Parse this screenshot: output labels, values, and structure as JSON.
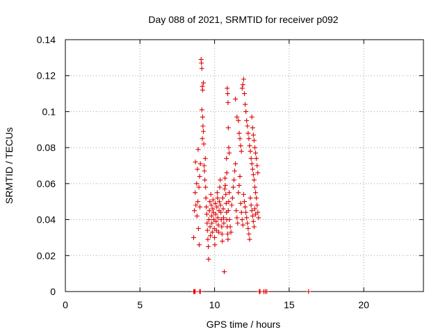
{
  "chart_data": {
    "type": "scatter",
    "title": "Day 088 of 2021, SRMTID for receiver p092",
    "xlabel": "GPS time / hours",
    "ylabel": "SRMTID / TECUs",
    "xlim": [
      0,
      24
    ],
    "ylim": [
      0,
      0.14
    ],
    "grid": true,
    "marker": "+",
    "color": "#dd0000",
    "x_ticks": [
      0,
      5,
      10,
      15,
      20
    ],
    "x_tick_labels": [
      "0",
      "5",
      "10",
      "15",
      "20"
    ],
    "y_ticks": [
      0,
      0.02,
      0.04,
      0.06,
      0.08,
      0.1,
      0.12,
      0.14
    ],
    "y_tick_labels": [
      "0",
      "0.02",
      "0.04",
      "0.06",
      "0.08",
      "0.1",
      "0.12",
      "0.14"
    ],
    "series": [
      {
        "name": "SRMTID",
        "points": [
          [
            8.6,
            0.0
          ],
          [
            8.65,
            0.0
          ],
          [
            8.7,
            0.0
          ],
          [
            9.0,
            0.0
          ],
          [
            9.05,
            0.0
          ],
          [
            13.0,
            0.0
          ],
          [
            13.05,
            0.0
          ],
          [
            13.3,
            0.0
          ],
          [
            13.4,
            0.0
          ],
          [
            13.5,
            0.0
          ],
          [
            16.3,
            0.0
          ],
          [
            8.6,
            0.03
          ],
          [
            8.65,
            0.045
          ],
          [
            8.7,
            0.055
          ],
          [
            8.72,
            0.072
          ],
          [
            8.75,
            0.048
          ],
          [
            8.8,
            0.06
          ],
          [
            8.82,
            0.042
          ],
          [
            8.85,
            0.068
          ],
          [
            8.88,
            0.05
          ],
          [
            8.9,
            0.079
          ],
          [
            8.92,
            0.035
          ],
          [
            8.95,
            0.058
          ],
          [
            8.97,
            0.026
          ],
          [
            9.0,
            0.064
          ],
          [
            9.02,
            0.047
          ],
          [
            9.05,
            0.071
          ],
          [
            9.1,
            0.129
          ],
          [
            9.12,
            0.127
          ],
          [
            9.15,
            0.124
          ],
          [
            9.18,
            0.114
          ],
          [
            9.2,
            0.112
          ],
          [
            9.25,
            0.116
          ],
          [
            9.15,
            0.101
          ],
          [
            9.2,
            0.097
          ],
          [
            9.22,
            0.092
          ],
          [
            9.25,
            0.089
          ],
          [
            9.18,
            0.085
          ],
          [
            9.28,
            0.082
          ],
          [
            9.3,
            0.07
          ],
          [
            9.32,
            0.067
          ],
          [
            9.35,
            0.062
          ],
          [
            9.38,
            0.074
          ],
          [
            9.4,
            0.058
          ],
          [
            9.42,
            0.052
          ],
          [
            9.45,
            0.047
          ],
          [
            9.48,
            0.043
          ],
          [
            9.5,
            0.038
          ],
          [
            9.52,
            0.034
          ],
          [
            9.55,
            0.029
          ],
          [
            9.58,
            0.025
          ],
          [
            9.6,
            0.018
          ],
          [
            9.62,
            0.04
          ],
          [
            9.65,
            0.045
          ],
          [
            9.68,
            0.05
          ],
          [
            9.7,
            0.036
          ],
          [
            9.72,
            0.031
          ],
          [
            9.75,
            0.054
          ],
          [
            9.78,
            0.048
          ],
          [
            9.8,
            0.042
          ],
          [
            9.82,
            0.038
          ],
          [
            9.85,
            0.033
          ],
          [
            9.88,
            0.046
          ],
          [
            9.9,
            0.051
          ],
          [
            9.92,
            0.044
          ],
          [
            9.95,
            0.04
          ],
          [
            9.98,
            0.035
          ],
          [
            10.0,
            0.03
          ],
          [
            10.02,
            0.026
          ],
          [
            10.05,
            0.049
          ],
          [
            10.08,
            0.043
          ],
          [
            10.1,
            0.039
          ],
          [
            10.12,
            0.034
          ],
          [
            10.15,
            0.047
          ],
          [
            10.18,
            0.055
          ],
          [
            10.2,
            0.052
          ],
          [
            10.22,
            0.041
          ],
          [
            10.25,
            0.037
          ],
          [
            10.28,
            0.033
          ],
          [
            10.3,
            0.045
          ],
          [
            10.32,
            0.05
          ],
          [
            10.35,
            0.058
          ],
          [
            10.38,
            0.062
          ],
          [
            10.4,
            0.048
          ],
          [
            10.42,
            0.044
          ],
          [
            10.45,
            0.04
          ],
          [
            10.48,
            0.036
          ],
          [
            10.5,
            0.032
          ],
          [
            10.52,
            0.028
          ],
          [
            10.55,
            0.052
          ],
          [
            10.58,
            0.046
          ],
          [
            10.6,
            0.041
          ],
          [
            10.62,
            0.038
          ],
          [
            10.65,
            0.011
          ],
          [
            10.68,
            0.057
          ],
          [
            10.7,
            0.063
          ],
          [
            10.72,
            0.059
          ],
          [
            10.75,
            0.054
          ],
          [
            10.78,
            0.049
          ],
          [
            10.8,
            0.044
          ],
          [
            10.82,
            0.04
          ],
          [
            10.85,
            0.036
          ],
          [
            10.88,
            0.032
          ],
          [
            10.9,
            0.029
          ],
          [
            10.92,
            0.045
          ],
          [
            10.95,
            0.05
          ],
          [
            10.98,
            0.055
          ],
          [
            10.85,
            0.113
          ],
          [
            10.88,
            0.11
          ],
          [
            10.9,
            0.105
          ],
          [
            10.92,
            0.091
          ],
          [
            10.95,
            0.08
          ],
          [
            10.98,
            0.077
          ],
          [
            10.8,
            0.074
          ],
          [
            10.82,
            0.066
          ],
          [
            11.0,
            0.04
          ],
          [
            11.05,
            0.036
          ],
          [
            11.1,
            0.033
          ],
          [
            11.15,
            0.048
          ],
          [
            11.2,
            0.052
          ],
          [
            11.25,
            0.058
          ],
          [
            11.3,
            0.062
          ],
          [
            11.35,
            0.067
          ],
          [
            11.4,
            0.071
          ],
          [
            11.45,
            0.045
          ],
          [
            11.5,
            0.041
          ],
          [
            11.55,
            0.038
          ],
          [
            11.6,
            0.055
          ],
          [
            11.65,
            0.059
          ],
          [
            11.7,
            0.064
          ],
          [
            11.75,
            0.049
          ],
          [
            11.8,
            0.044
          ],
          [
            11.85,
            0.04
          ],
          [
            11.9,
            0.037
          ],
          [
            11.95,
            0.054
          ],
          [
            11.4,
            0.107
          ],
          [
            11.5,
            0.097
          ],
          [
            11.6,
            0.095
          ],
          [
            11.65,
            0.088
          ],
          [
            11.7,
            0.085
          ],
          [
            11.75,
            0.081
          ],
          [
            11.8,
            0.078
          ],
          [
            11.85,
            0.113
          ],
          [
            11.9,
            0.115
          ],
          [
            11.95,
            0.118
          ],
          [
            12.0,
            0.11
          ],
          [
            12.05,
            0.104
          ],
          [
            12.1,
            0.1
          ],
          [
            12.15,
            0.095
          ],
          [
            12.2,
            0.092
          ],
          [
            12.25,
            0.088
          ],
          [
            12.3,
            0.085
          ],
          [
            12.35,
            0.081
          ],
          [
            12.4,
            0.078
          ],
          [
            12.45,
            0.074
          ],
          [
            12.5,
            0.071
          ],
          [
            12.55,
            0.068
          ],
          [
            12.6,
            0.065
          ],
          [
            12.65,
            0.062
          ],
          [
            12.7,
            0.058
          ],
          [
            12.75,
            0.055
          ],
          [
            12.0,
            0.05
          ],
          [
            12.05,
            0.047
          ],
          [
            12.1,
            0.044
          ],
          [
            12.15,
            0.041
          ],
          [
            12.2,
            0.038
          ],
          [
            12.25,
            0.035
          ],
          [
            12.3,
            0.032
          ],
          [
            12.35,
            0.029
          ],
          [
            12.4,
            0.052
          ],
          [
            12.45,
            0.048
          ],
          [
            12.5,
            0.045
          ],
          [
            12.55,
            0.042
          ],
          [
            12.6,
            0.039
          ],
          [
            12.65,
            0.036
          ],
          [
            12.7,
            0.046
          ],
          [
            12.75,
            0.043
          ],
          [
            12.5,
            0.097
          ],
          [
            12.55,
            0.091
          ],
          [
            12.6,
            0.087
          ],
          [
            12.65,
            0.084
          ],
          [
            12.7,
            0.08
          ],
          [
            12.75,
            0.077
          ],
          [
            12.8,
            0.074
          ],
          [
            12.85,
            0.07
          ],
          [
            12.9,
            0.066
          ],
          [
            12.8,
            0.052
          ],
          [
            12.85,
            0.048
          ],
          [
            12.9,
            0.044
          ],
          [
            12.95,
            0.041
          ]
        ]
      }
    ]
  }
}
